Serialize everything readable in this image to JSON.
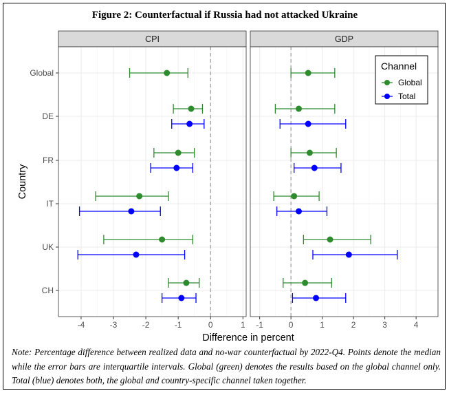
{
  "figure_title": "Figure 2: Counterfactual if Russia had not attacked Ukraine",
  "note": "Note: Percentage difference between realized data and no-war counterfactual by 2022-Q4. Points denote the median while the error bars are interquartile intervals. Global (green) denotes the results based on the global channel only. Total (blue) denotes both, the global and country-specific channel taken together.",
  "colors": {
    "global": "#2e8b2e",
    "total": "#0000ff",
    "strip_bg": "#d9d9d9",
    "grid": "#ebebeb",
    "reference_line": "#999999"
  },
  "chart_data": {
    "type": "scatter",
    "subtype": "dot-and-interval (faceted)",
    "xlabel": "Difference in percent",
    "ylabel": "Country",
    "countries": [
      "Global",
      "DE",
      "FR",
      "IT",
      "UK",
      "CH"
    ],
    "legend": {
      "title": "Channel",
      "entries": [
        "Global",
        "Total"
      ],
      "placement": "top-right of GDP panel"
    },
    "reference_line_x": 0,
    "grid": true,
    "panels": [
      {
        "name": "CPI",
        "xlim": [
          -4.7,
          1.1
        ],
        "xticks": [
          -4,
          -3,
          -2,
          -1,
          0,
          1
        ],
        "series": [
          {
            "name": "Global",
            "points": [
              {
                "country": "Global",
                "median": -1.35,
                "low": -2.5,
                "high": -0.7
              },
              {
                "country": "DE",
                "median": -0.6,
                "low": -1.15,
                "high": -0.25
              },
              {
                "country": "FR",
                "median": -1.0,
                "low": -1.75,
                "high": -0.5
              },
              {
                "country": "IT",
                "median": -2.2,
                "low": -3.55,
                "high": -1.3
              },
              {
                "country": "UK",
                "median": -1.5,
                "low": -3.3,
                "high": -0.55
              },
              {
                "country": "CH",
                "median": -0.75,
                "low": -1.3,
                "high": -0.35
              }
            ]
          },
          {
            "name": "Total",
            "points": [
              {
                "country": "DE",
                "median": -0.65,
                "low": -1.2,
                "high": -0.2
              },
              {
                "country": "FR",
                "median": -1.05,
                "low": -1.85,
                "high": -0.55
              },
              {
                "country": "IT",
                "median": -2.45,
                "low": -4.05,
                "high": -1.55
              },
              {
                "country": "UK",
                "median": -2.3,
                "low": -4.1,
                "high": -0.8
              },
              {
                "country": "CH",
                "median": -0.9,
                "low": -1.5,
                "high": -0.45
              }
            ]
          }
        ]
      },
      {
        "name": "GDP",
        "xlim": [
          -1.3,
          4.7
        ],
        "xticks": [
          -1,
          0,
          1,
          2,
          3,
          4
        ],
        "series": [
          {
            "name": "Global",
            "points": [
              {
                "country": "Global",
                "median": 0.55,
                "low": 0.0,
                "high": 1.4
              },
              {
                "country": "DE",
                "median": 0.25,
                "low": -0.5,
                "high": 1.4
              },
              {
                "country": "FR",
                "median": 0.6,
                "low": 0.0,
                "high": 1.45
              },
              {
                "country": "IT",
                "median": 0.1,
                "low": -0.55,
                "high": 0.9
              },
              {
                "country": "UK",
                "median": 1.25,
                "low": 0.4,
                "high": 2.55
              },
              {
                "country": "CH",
                "median": 0.45,
                "low": -0.25,
                "high": 1.3
              }
            ]
          },
          {
            "name": "Total",
            "points": [
              {
                "country": "DE",
                "median": 0.55,
                "low": -0.35,
                "high": 1.75
              },
              {
                "country": "FR",
                "median": 0.75,
                "low": 0.1,
                "high": 1.6
              },
              {
                "country": "IT",
                "median": 0.25,
                "low": -0.45,
                "high": 1.15
              },
              {
                "country": "UK",
                "median": 1.85,
                "low": 0.7,
                "high": 3.4
              },
              {
                "country": "CH",
                "median": 0.8,
                "low": 0.05,
                "high": 1.75
              }
            ]
          }
        ]
      }
    ]
  }
}
